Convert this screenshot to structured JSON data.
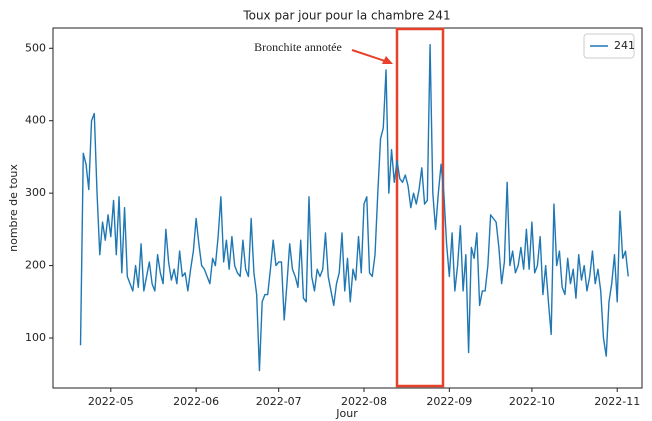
{
  "chart_data": {
    "type": "line",
    "title": "Toux par jour pour la chambre 241",
    "xlabel": "Jour",
    "ylabel": "nombre de toux",
    "annotation": "Bronchite annotée",
    "legend": "upper right",
    "series": [
      {
        "name": "241",
        "color": "#1f77b4",
        "values": [
          90,
          355,
          340,
          305,
          400,
          410,
          300,
          215,
          260,
          235,
          270,
          240,
          290,
          215,
          295,
          190,
          280,
          185,
          175,
          165,
          200,
          170,
          230,
          165,
          185,
          205,
          175,
          165,
          215,
          190,
          175,
          250,
          205,
          180,
          195,
          175,
          220,
          185,
          190,
          165,
          195,
          220,
          265,
          230,
          200,
          195,
          185,
          175,
          210,
          200,
          240,
          295,
          205,
          235,
          195,
          240,
          200,
          190,
          185,
          235,
          195,
          185,
          265,
          190,
          160,
          55,
          150,
          160,
          160,
          195,
          235,
          200,
          205,
          205,
          125,
          175,
          230,
          195,
          185,
          170,
          235,
          155,
          150,
          295,
          185,
          165,
          195,
          185,
          195,
          245,
          185,
          165,
          145,
          175,
          190,
          245,
          165,
          210,
          150,
          195,
          180,
          240,
          190,
          285,
          295,
          190,
          185,
          215,
          300,
          375,
          390,
          470,
          300,
          360,
          315,
          345,
          320,
          315,
          325,
          310,
          280,
          300,
          285,
          305,
          335,
          285,
          290,
          505,
          300,
          250,
          300,
          340,
          300,
          230,
          185,
          245,
          165,
          200,
          255,
          165,
          215,
          80,
          225,
          210,
          245,
          145,
          165,
          165,
          200,
          270,
          265,
          260,
          225,
          175,
          205,
          315,
          200,
          220,
          190,
          200,
          225,
          195,
          250,
          195,
          260,
          190,
          200,
          240,
          160,
          200,
          150,
          105,
          285,
          200,
          220,
          170,
          160,
          210,
          175,
          195,
          155,
          215,
          180,
          200,
          165,
          185,
          220,
          175,
          195,
          165,
          100,
          75,
          150,
          175,
          215,
          150,
          275,
          210,
          220,
          185
        ]
      }
    ],
    "xlim": [
      -10,
      204
    ],
    "xticks": [
      {
        "value": 11,
        "label": "2022-05"
      },
      {
        "value": 42,
        "label": "2022-06"
      },
      {
        "value": 72,
        "label": "2022-07"
      },
      {
        "value": 103,
        "label": "2022-08"
      },
      {
        "value": 134,
        "label": "2022-09"
      },
      {
        "value": 164,
        "label": "2022-10"
      },
      {
        "value": 195,
        "label": "2022-11"
      }
    ],
    "ylim": [
      31,
      528
    ],
    "yticks": [
      100,
      200,
      300,
      400,
      500
    ],
    "grid": false
  }
}
